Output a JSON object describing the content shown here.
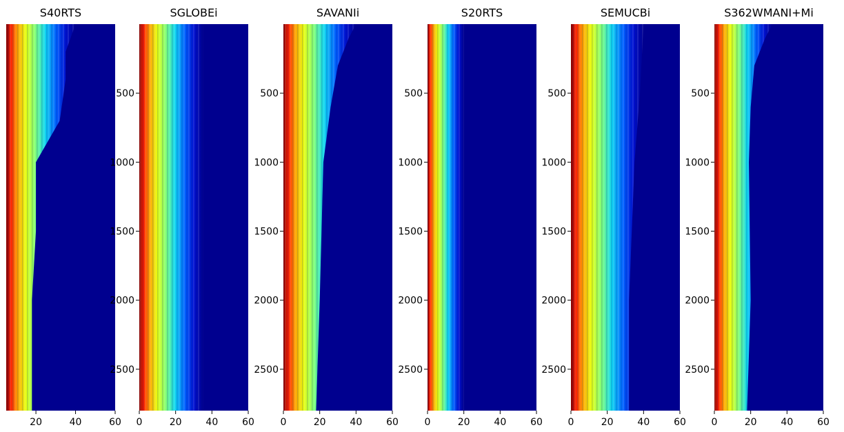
{
  "chart_data": [
    {
      "type": "heatmap",
      "title": "S40RTS",
      "xlim": [
        5,
        60
      ],
      "ylim": [
        2800,
        0
      ],
      "xticks": [
        "20",
        "40",
        "60"
      ],
      "yticks": [],
      "colormap": "jet",
      "degree_extent": {
        "depths": [
          0,
          200,
          400,
          700,
          1000,
          1500,
          2000,
          2500,
          2800
        ],
        "max_degree": [
          40,
          35,
          35,
          32,
          20,
          20,
          18,
          18,
          18
        ]
      }
    },
    {
      "type": "heatmap",
      "title": "SGLOBEi",
      "xlim": [
        0,
        60
      ],
      "ylim": [
        2800,
        0
      ],
      "xticks": [
        "0",
        "20",
        "40",
        "60"
      ],
      "yticks": [
        "500",
        "1000",
        "1500",
        "2000",
        "2500"
      ],
      "colormap": "jet",
      "degree_extent": {
        "depths": [
          0,
          2800
        ],
        "max_degree": [
          35,
          35
        ]
      }
    },
    {
      "type": "heatmap",
      "title": "SAVANIi",
      "xlim": [
        0,
        60
      ],
      "ylim": [
        2800,
        0
      ],
      "xticks": [
        "0",
        "20",
        "40",
        "60"
      ],
      "yticks": [
        "500",
        "1000",
        "1500",
        "2000",
        "2500"
      ],
      "colormap": "jet",
      "degree_extent": {
        "depths": [
          0,
          100,
          300,
          600,
          1000,
          2000,
          2800
        ],
        "max_degree": [
          40,
          36,
          30,
          26,
          22,
          20,
          18
        ]
      }
    },
    {
      "type": "heatmap",
      "title": "S20RTS",
      "xlim": [
        0,
        60
      ],
      "ylim": [
        2800,
        0
      ],
      "xticks": [
        "0",
        "20",
        "40",
        "60"
      ],
      "yticks": [
        "500",
        "1000",
        "1500",
        "2000",
        "2500"
      ],
      "colormap": "jet",
      "degree_extent": {
        "depths": [
          0,
          2800
        ],
        "max_degree": [
          20,
          20
        ]
      }
    },
    {
      "type": "heatmap",
      "title": "SEMUCBi",
      "xlim": [
        0,
        60
      ],
      "ylim": [
        2800,
        0
      ],
      "xticks": [
        "0",
        "20",
        "40",
        "60"
      ],
      "yticks": [
        "500",
        "1000",
        "1500",
        "2000",
        "2500"
      ],
      "colormap": "jet",
      "degree_extent": {
        "depths": [
          0,
          500,
          1000,
          2000,
          2800
        ],
        "max_degree": [
          40,
          38,
          35,
          32,
          32
        ]
      }
    },
    {
      "type": "heatmap",
      "title": "S362WMANI+Mi",
      "xlim": [
        0,
        60
      ],
      "ylim": [
        2800,
        0
      ],
      "xticks": [
        "0",
        "20",
        "40",
        "60"
      ],
      "yticks": [
        "500",
        "1000",
        "1500",
        "2000",
        "2500"
      ],
      "colormap": "jet",
      "degree_extent": {
        "depths": [
          0,
          100,
          300,
          600,
          1000,
          2000,
          2800
        ],
        "max_degree": [
          32,
          28,
          22,
          20,
          19,
          20,
          18
        ]
      }
    }
  ]
}
